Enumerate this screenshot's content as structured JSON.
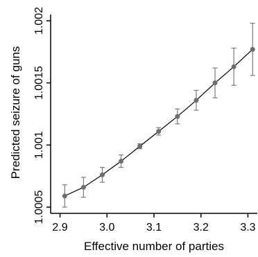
{
  "chart_data": {
    "type": "line",
    "xlabel": "Effective number of parties",
    "ylabel": "Predicted seizure of guns",
    "x_ticks": [
      2.9,
      3.0,
      3.1,
      3.2,
      3.3
    ],
    "x_tick_labels": [
      "2.9",
      "3.0",
      "3.1",
      "3.2",
      "3.3"
    ],
    "y_ticks": [
      1.0005,
      1.001,
      1.0015,
      1.002
    ],
    "y_tick_labels": [
      "1.0005",
      "1.001",
      "1.0015",
      "1.002"
    ],
    "xlim": [
      2.88,
      3.32
    ],
    "ylim": [
      1.00045,
      1.00205
    ],
    "grid": false,
    "series": [
      {
        "x": [
          2.91,
          2.95,
          2.99,
          3.03,
          3.07,
          3.11,
          3.15,
          3.19,
          3.23,
          3.27,
          3.31
        ],
        "y": [
          1.00059,
          1.00066,
          1.00076,
          1.00087,
          1.00099,
          1.00111,
          1.00123,
          1.00136,
          1.0015,
          1.00163,
          1.00177
        ],
        "lower": [
          1.0005,
          1.00058,
          1.0007,
          1.00082,
          1.00097,
          1.00108,
          1.00117,
          1.00128,
          1.00138,
          1.00148,
          1.00156
        ],
        "upper": [
          1.00068,
          1.00074,
          1.00082,
          1.00092,
          1.00101,
          1.00114,
          1.00129,
          1.00144,
          1.00162,
          1.00178,
          1.00198
        ]
      }
    ],
    "colors": {
      "marker": "#6e6e6e",
      "errorbar": "#7a7a7a",
      "line": "#000000",
      "axis": "#000000"
    }
  }
}
